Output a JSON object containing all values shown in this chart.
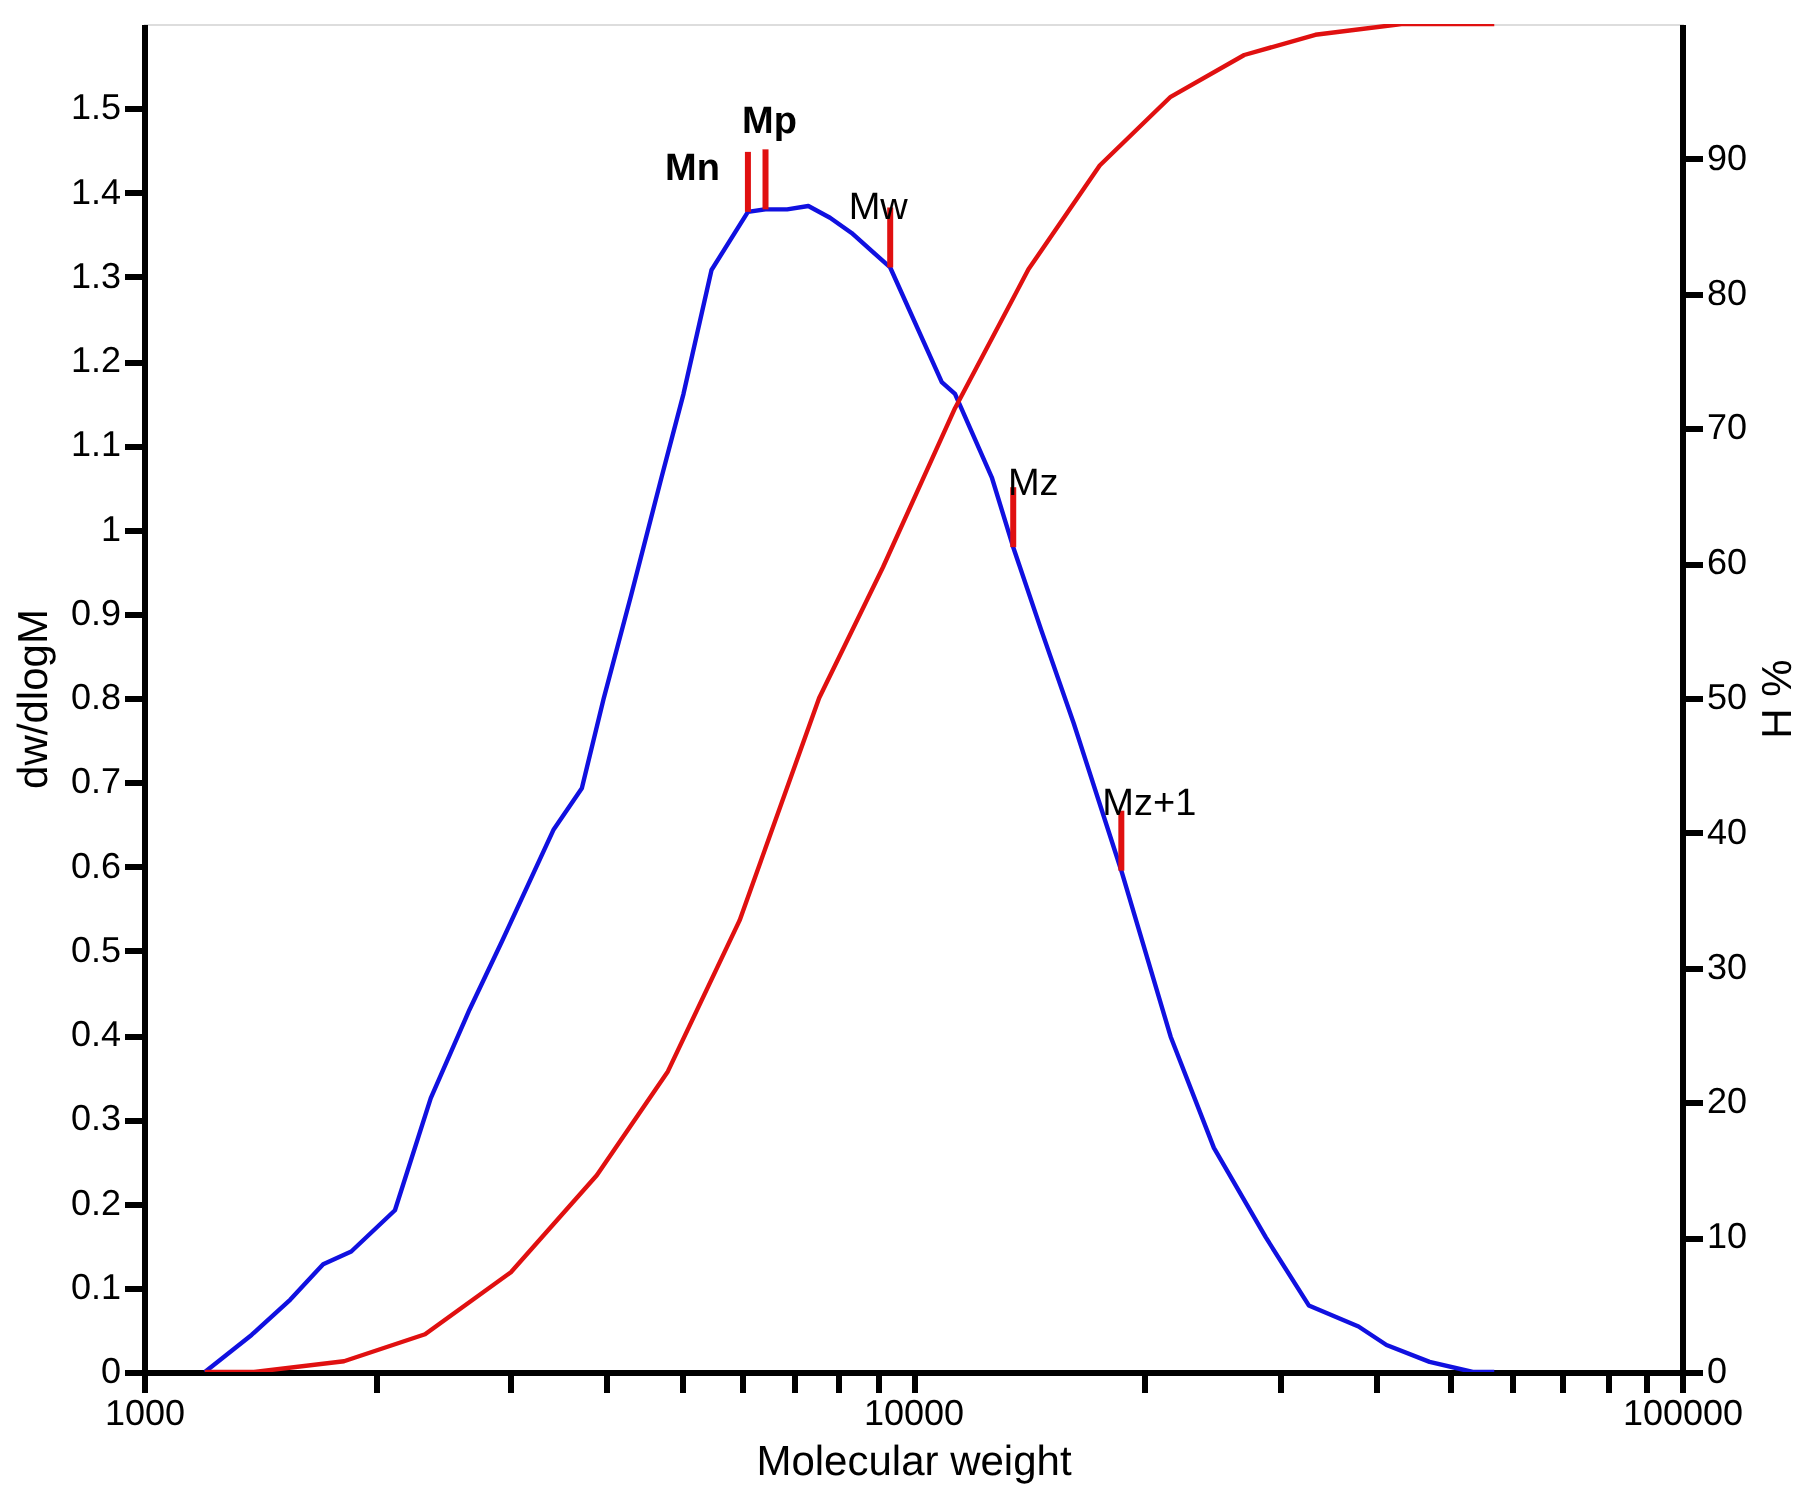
{
  "chart_data": {
    "type": "line",
    "xlabel": "Molecular weight",
    "ylabel": "dw/dlogM",
    "y2label": "H %",
    "log": "x",
    "grid": false,
    "marker": "none",
    "line_style": "solid",
    "xlim": [
      1000,
      100000
    ],
    "xticks": [
      1000,
      {
        "value": 2000,
        "label": null
      },
      {
        "value": 3000,
        "label": null
      },
      {
        "value": 4000,
        "label": null
      },
      {
        "value": 5000,
        "label": null
      },
      {
        "value": 6000,
        "label": null
      },
      {
        "value": 7000,
        "label": null
      },
      {
        "value": 8000,
        "label": null
      },
      {
        "value": 9000,
        "label": null
      },
      10000,
      {
        "value": 20000,
        "label": null
      },
      {
        "value": 30000,
        "label": null
      },
      {
        "value": 40000,
        "label": null
      },
      {
        "value": 50000,
        "label": null
      },
      {
        "value": 60000,
        "label": null
      },
      {
        "value": 70000,
        "label": null
      },
      {
        "value": 80000,
        "label": null
      },
      {
        "value": 90000,
        "label": null
      },
      100000
    ],
    "ylim": [
      0,
      1.6
    ],
    "yticks": [
      0,
      0.1,
      0.2,
      0.3,
      0.4,
      0.5,
      0.6,
      0.7,
      0.8,
      0.9,
      1,
      1.1,
      1.2,
      1.3,
      1.4,
      1.5
    ],
    "y2lim": [
      0,
      100
    ],
    "y2ticks": [
      0,
      10,
      20,
      30,
      40,
      50,
      60,
      70,
      80,
      90
    ],
    "series": [
      {
        "color": "#1010e0",
        "x": [
          1200,
          1380,
          1550,
          1710,
          1860,
          2120,
          2360,
          2650,
          2920,
          3410,
          3710,
          3960,
          4300,
          4710,
          5030,
          5470,
          6100,
          6430,
          6860,
          7310,
          7800,
          8320,
          9340,
          10900,
          11340,
          12660,
          13500,
          14690,
          16180,
          18660,
          21630,
          24620,
          28750,
          32710,
          37960,
          41280,
          46960,
          53450,
          57000
        ],
        "values": [
          0,
          0.044,
          0.086,
          0.128,
          0.143,
          0.192,
          0.325,
          0.43,
          0.511,
          0.644,
          0.693,
          0.799,
          0.922,
          1.062,
          1.161,
          1.308,
          1.377,
          1.38,
          1.38,
          1.384,
          1.37,
          1.352,
          1.311,
          1.175,
          1.161,
          1.062,
          0.979,
          0.88,
          0.77,
          0.595,
          0.398,
          0.266,
          0.16,
          0.079,
          0.054,
          0.032,
          0.012,
          0,
          0
        ]
      },
      {
        "color": "#e01010",
        "axis": "y2",
        "x": [
          1200,
          1390,
          1820,
          2320,
          3000,
          3880,
          4800,
          5950,
          7550,
          9140,
          11340,
          14130,
          17490,
          21630,
          26960,
          33360,
          43190,
          57000
        ],
        "values": [
          0,
          0,
          0.8,
          2.8,
          7.4,
          14.6,
          22.3,
          33.5,
          50,
          59.7,
          71.5,
          81.8,
          89.5,
          94.6,
          97.7,
          99.2,
          100,
          100
        ]
      }
    ],
    "annotations": [
      {
        "text": "Mn",
        "x": 6100,
        "y": 1.377
      },
      {
        "text": "Mp",
        "x": 6430,
        "y": 1.38
      },
      {
        "text": "Mw",
        "x": 9340,
        "y": 1.311
      },
      {
        "text": "Mz",
        "x": 13500,
        "y": 0.979
      },
      {
        "text": "Mz+1",
        "x": 18660,
        "y": 0.595
      }
    ]
  }
}
